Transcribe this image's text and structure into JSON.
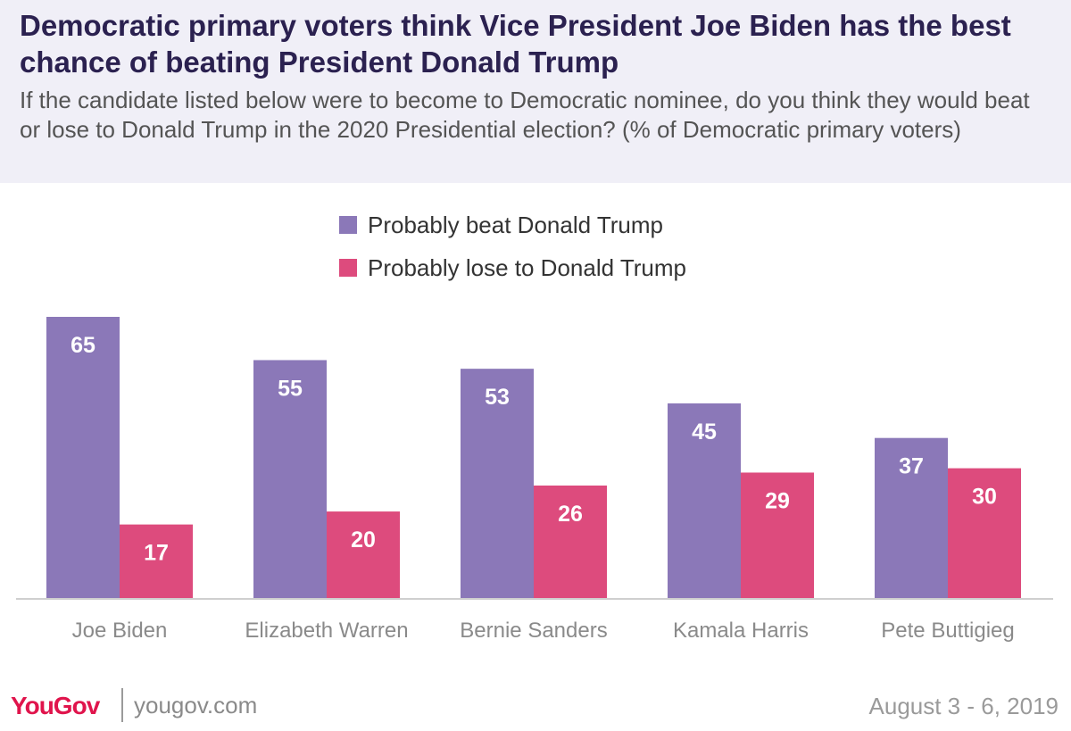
{
  "header": {
    "title": "Democratic primary voters think Vice President Joe Biden has the best chance of beating President Donald Trump",
    "subtitle": "If the candidate listed below were to become to Democratic nominee, do you think they would beat or lose to Donald Trump in the 2020 Presidential election? (% of Democratic primary voters)"
  },
  "legend": [
    {
      "label": "Probably beat Donald Trump",
      "color": "#8b78b8"
    },
    {
      "label": "Probably lose to Donald Trump",
      "color": "#dd4b7d"
    }
  ],
  "chart_data": {
    "type": "bar",
    "categories": [
      "Joe Biden",
      "Elizabeth Warren",
      "Bernie Sanders",
      "Kamala Harris",
      "Pete Buttigieg"
    ],
    "series": [
      {
        "name": "Probably beat Donald Trump",
        "values": [
          65,
          55,
          53,
          45,
          37
        ],
        "color": "#8b78b8"
      },
      {
        "name": "Probably lose to Donald Trump",
        "values": [
          17,
          20,
          26,
          29,
          30
        ],
        "color": "#dd4b7d"
      }
    ],
    "ylim": [
      0,
      65
    ],
    "grid": false,
    "legend_position": "top-center"
  },
  "footer": {
    "logo": "YouGov",
    "site": "yougov.com",
    "date": "August 3 - 6, 2019"
  }
}
